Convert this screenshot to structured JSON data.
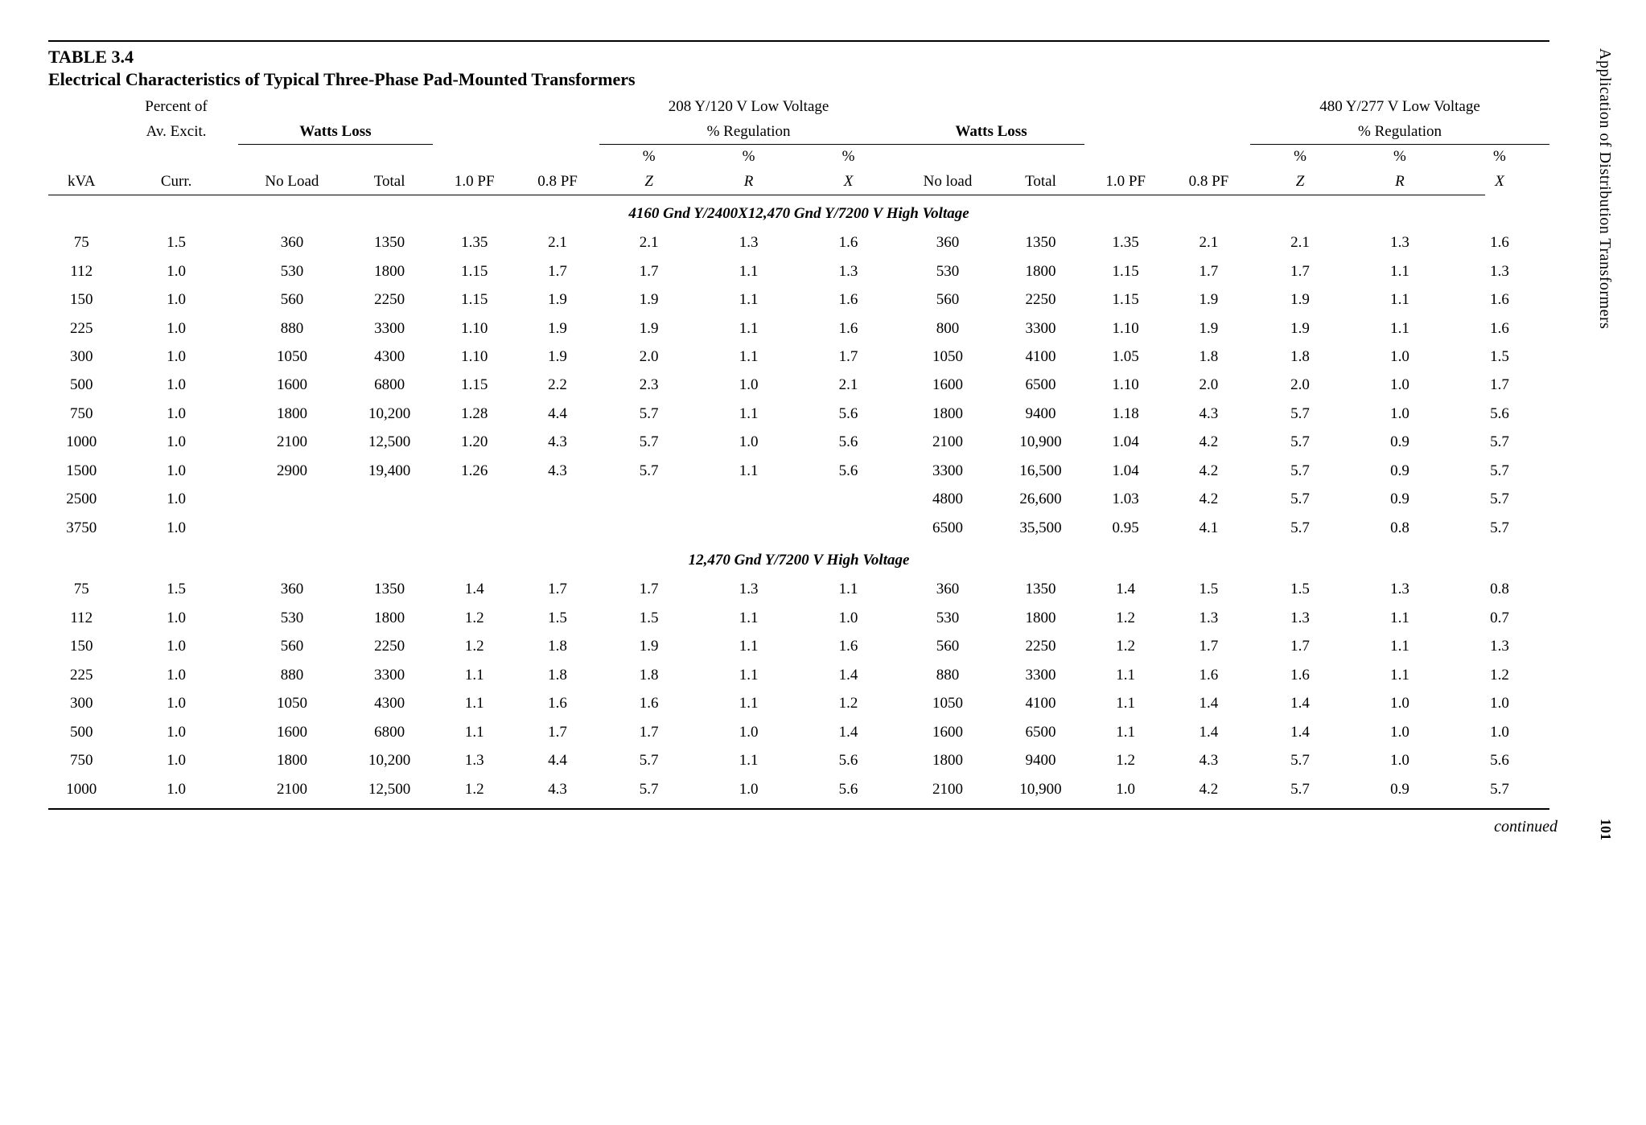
{
  "side_title": "Application of Distribution Transformers",
  "page_number": "101",
  "continued": "continued",
  "table": {
    "label": "TABLE 3.4",
    "title": "Electrical Characteristics of Typical Three-Phase Pad-Mounted Transformers",
    "header": {
      "kva": "kVA",
      "percent_excit_top": "Percent of",
      "percent_excit_mid": "Av. Excit.",
      "percent_excit_bot": "Curr.",
      "watts_loss": "Watts Loss",
      "no_load": "No Load",
      "no_load2": "No load",
      "total": "Total",
      "pf10": "1.0 PF",
      "pf08": "0.8 PF",
      "lv208_top": "208 Y/120 V Low Voltage",
      "lv480_top": "480 Y/277 V Low Voltage",
      "pct_reg": "% Regulation",
      "pct": "%",
      "z": "Z",
      "r": "R",
      "x": "X"
    },
    "sections": [
      {
        "title": "4160 Gnd Y/2400X12,470 Gnd Y/7200 V High Voltage",
        "rows": [
          [
            "75",
            "1.5",
            "360",
            "1350",
            "1.35",
            "2.1",
            "2.1",
            "1.3",
            "1.6",
            "360",
            "1350",
            "1.35",
            "2.1",
            "2.1",
            "1.3",
            "1.6"
          ],
          [
            "112",
            "1.0",
            "530",
            "1800",
            "1.15",
            "1.7",
            "1.7",
            "1.1",
            "1.3",
            "530",
            "1800",
            "1.15",
            "1.7",
            "1.7",
            "1.1",
            "1.3"
          ],
          [
            "150",
            "1.0",
            "560",
            "2250",
            "1.15",
            "1.9",
            "1.9",
            "1.1",
            "1.6",
            "560",
            "2250",
            "1.15",
            "1.9",
            "1.9",
            "1.1",
            "1.6"
          ],
          [
            "225",
            "1.0",
            "880",
            "3300",
            "1.10",
            "1.9",
            "1.9",
            "1.1",
            "1.6",
            "800",
            "3300",
            "1.10",
            "1.9",
            "1.9",
            "1.1",
            "1.6"
          ],
          [
            "300",
            "1.0",
            "1050",
            "4300",
            "1.10",
            "1.9",
            "2.0",
            "1.1",
            "1.7",
            "1050",
            "4100",
            "1.05",
            "1.8",
            "1.8",
            "1.0",
            "1.5"
          ],
          [
            "500",
            "1.0",
            "1600",
            "6800",
            "1.15",
            "2.2",
            "2.3",
            "1.0",
            "2.1",
            "1600",
            "6500",
            "1.10",
            "2.0",
            "2.0",
            "1.0",
            "1.7"
          ],
          [
            "750",
            "1.0",
            "1800",
            "10,200",
            "1.28",
            "4.4",
            "5.7",
            "1.1",
            "5.6",
            "1800",
            "9400",
            "1.18",
            "4.3",
            "5.7",
            "1.0",
            "5.6"
          ],
          [
            "1000",
            "1.0",
            "2100",
            "12,500",
            "1.20",
            "4.3",
            "5.7",
            "1.0",
            "5.6",
            "2100",
            "10,900",
            "1.04",
            "4.2",
            "5.7",
            "0.9",
            "5.7"
          ],
          [
            "1500",
            "1.0",
            "2900",
            "19,400",
            "1.26",
            "4.3",
            "5.7",
            "1.1",
            "5.6",
            "3300",
            "16,500",
            "1.04",
            "4.2",
            "5.7",
            "0.9",
            "5.7"
          ],
          [
            "2500",
            "1.0",
            "",
            "",
            "",
            "",
            "",
            "",
            "",
            "4800",
            "26,600",
            "1.03",
            "4.2",
            "5.7",
            "0.9",
            "5.7"
          ],
          [
            "3750",
            "1.0",
            "",
            "",
            "",
            "",
            "",
            "",
            "",
            "6500",
            "35,500",
            "0.95",
            "4.1",
            "5.7",
            "0.8",
            "5.7"
          ]
        ]
      },
      {
        "title": "12,470 Gnd Y/7200 V High Voltage",
        "rows": [
          [
            "75",
            "1.5",
            "360",
            "1350",
            "1.4",
            "1.7",
            "1.7",
            "1.3",
            "1.1",
            "360",
            "1350",
            "1.4",
            "1.5",
            "1.5",
            "1.3",
            "0.8"
          ],
          [
            "112",
            "1.0",
            "530",
            "1800",
            "1.2",
            "1.5",
            "1.5",
            "1.1",
            "1.0",
            "530",
            "1800",
            "1.2",
            "1.3",
            "1.3",
            "1.1",
            "0.7"
          ],
          [
            "150",
            "1.0",
            "560",
            "2250",
            "1.2",
            "1.8",
            "1.9",
            "1.1",
            "1.6",
            "560",
            "2250",
            "1.2",
            "1.7",
            "1.7",
            "1.1",
            "1.3"
          ],
          [
            "225",
            "1.0",
            "880",
            "3300",
            "1.1",
            "1.8",
            "1.8",
            "1.1",
            "1.4",
            "880",
            "3300",
            "1.1",
            "1.6",
            "1.6",
            "1.1",
            "1.2"
          ],
          [
            "300",
            "1.0",
            "1050",
            "4300",
            "1.1",
            "1.6",
            "1.6",
            "1.1",
            "1.2",
            "1050",
            "4100",
            "1.1",
            "1.4",
            "1.4",
            "1.0",
            "1.0"
          ],
          [
            "500",
            "1.0",
            "1600",
            "6800",
            "1.1",
            "1.7",
            "1.7",
            "1.0",
            "1.4",
            "1600",
            "6500",
            "1.1",
            "1.4",
            "1.4",
            "1.0",
            "1.0"
          ],
          [
            "750",
            "1.0",
            "1800",
            "10,200",
            "1.3",
            "4.4",
            "5.7",
            "1.1",
            "5.6",
            "1800",
            "9400",
            "1.2",
            "4.3",
            "5.7",
            "1.0",
            "5.6"
          ],
          [
            "1000",
            "1.0",
            "2100",
            "12,500",
            "1.2",
            "4.3",
            "5.7",
            "1.0",
            "5.6",
            "2100",
            "10,900",
            "1.0",
            "4.2",
            "5.7",
            "0.9",
            "5.7"
          ]
        ]
      }
    ]
  },
  "style": {
    "background_color": "#ffffff",
    "text_color": "#000000",
    "font_family": "Times New Roman",
    "title_fontsize": 22,
    "body_fontsize": 19,
    "side_fontsize": 20,
    "rule_color": "#000000"
  }
}
